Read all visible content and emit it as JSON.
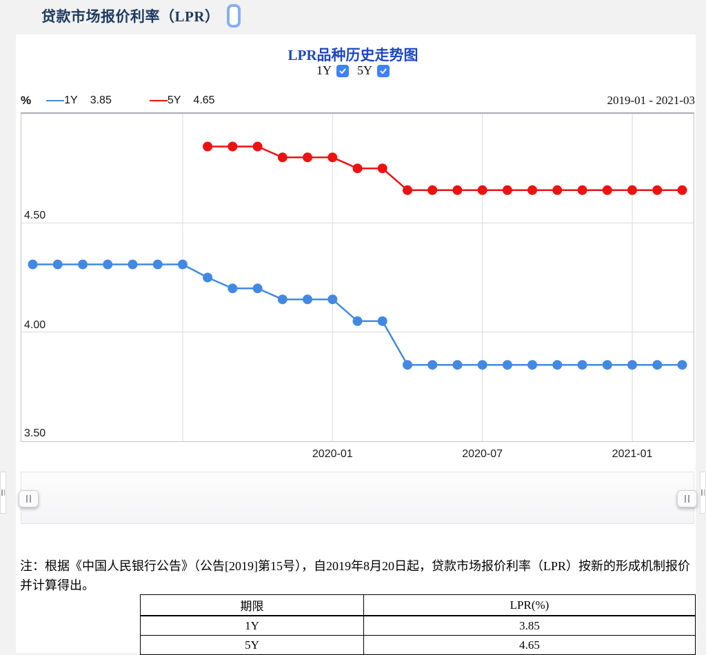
{
  "page": {
    "title": "贷款市场报价利率（LPR）",
    "date_range": "2019-01 - 2021-03"
  },
  "chart": {
    "checkboxes": [
      {
        "label": "1Y",
        "checked": true
      },
      {
        "label": "5Y",
        "checked": true
      }
    ],
    "legend": [
      {
        "name": "1Y",
        "value": "3.85",
        "color": "#4389e2"
      },
      {
        "name": "5Y",
        "value": "4.65",
        "color": "#ee1111"
      }
    ]
  },
  "ui": {
    "checkbox_color": "#3d82f7",
    "grid_color": "#d9d9de",
    "accent_title_color": "#1e46c3"
  },
  "chart_data": {
    "type": "line",
    "title": "LPR品种历史走势图",
    "xlabel": "",
    "ylabel": "%",
    "ylim": [
      3.5,
      5.0
    ],
    "grid": true,
    "legend_position": "top-left",
    "x": [
      "2019-01",
      "2019-02",
      "2019-03",
      "2019-04",
      "2019-05",
      "2019-06",
      "2019-07",
      "2019-08",
      "2019-09",
      "2019-10",
      "2019-11",
      "2019-12",
      "2020-01",
      "2020-02",
      "2020-03",
      "2020-04",
      "2020-05",
      "2020-06",
      "2020-07",
      "2020-08",
      "2020-09",
      "2020-10",
      "2020-11",
      "2020-12",
      "2021-01",
      "2021-02",
      "2021-03"
    ],
    "series": [
      {
        "name": "1Y",
        "color": "#4389e2",
        "values": [
          4.31,
          4.31,
          4.31,
          4.31,
          4.31,
          4.31,
          4.31,
          4.25,
          4.2,
          4.2,
          4.15,
          4.15,
          4.15,
          4.05,
          4.05,
          3.85,
          3.85,
          3.85,
          3.85,
          3.85,
          3.85,
          3.85,
          3.85,
          3.85,
          3.85,
          3.85,
          3.85
        ]
      },
      {
        "name": "5Y",
        "color": "#ee1111",
        "values": [
          null,
          null,
          null,
          null,
          null,
          null,
          null,
          4.85,
          4.85,
          4.85,
          4.8,
          4.8,
          4.8,
          4.75,
          4.75,
          4.65,
          4.65,
          4.65,
          4.65,
          4.65,
          4.65,
          4.65,
          4.65,
          4.65,
          4.65,
          4.65,
          4.65
        ]
      }
    ],
    "yticks": [
      {
        "value": 4.5,
        "label": "4.50"
      },
      {
        "value": 4.0,
        "label": "4.00"
      },
      {
        "value": 3.5,
        "label": "3.50"
      }
    ],
    "xticks": [
      {
        "month": "2019-07",
        "label": ""
      },
      {
        "month": "2020-01",
        "label": "2020-01"
      },
      {
        "month": "2020-07",
        "label": "2020-07"
      },
      {
        "month": "2021-01",
        "label": "2021-01"
      }
    ]
  },
  "note": {
    "text": "注：根据《中国人民银行公告》（公告[2019]第15号），自2019年8月20日起，贷款市场报价利率（LPR）按新的形成机制报价并计算得出。"
  },
  "table": {
    "headers": [
      "期限",
      "LPR(%)"
    ],
    "rows": [
      [
        "1Y",
        "3.85"
      ],
      [
        "5Y",
        "4.65"
      ]
    ]
  }
}
